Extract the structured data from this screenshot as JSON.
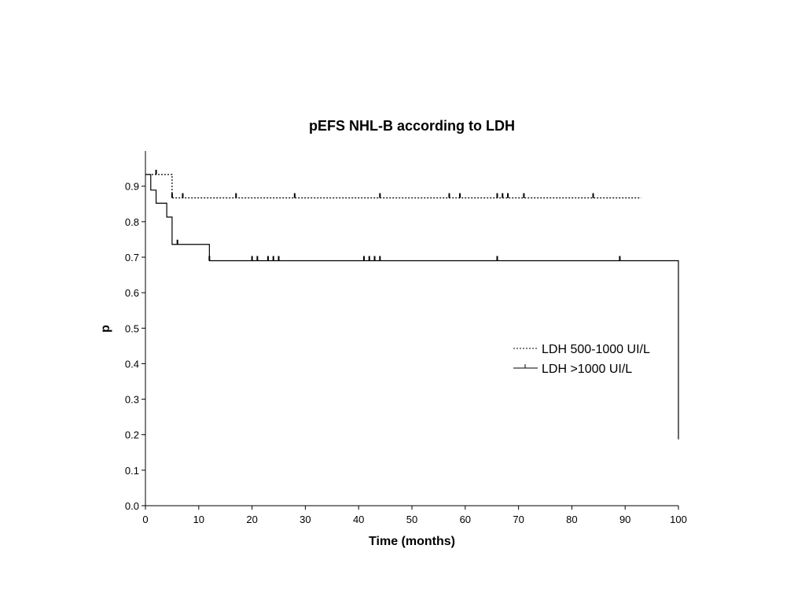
{
  "chart_data": {
    "type": "line",
    "title": "pEFS NHL-B according to LDH",
    "xlabel": "Time (months)",
    "ylabel": "p",
    "xlim": [
      0,
      100
    ],
    "ylim": [
      0,
      1.0
    ],
    "x_ticks": [
      0,
      10,
      20,
      30,
      40,
      50,
      60,
      70,
      80,
      90,
      100
    ],
    "y_ticks": [
      0.0,
      0.1,
      0.2,
      0.3,
      0.4,
      0.5,
      0.6,
      0.7,
      0.8,
      0.9
    ],
    "x_tick_labels": [
      "0",
      "10",
      "20",
      "30",
      "40",
      "50",
      "60",
      "70",
      "80",
      "90",
      "100"
    ],
    "y_tick_labels": [
      "0.0",
      "0.1",
      "0.2",
      "0.3",
      "0.4",
      "0.5",
      "0.6",
      "0.7",
      "0.8",
      "0.9"
    ],
    "grid": false,
    "legend_position": "right",
    "series": [
      {
        "name": "LDH 500-1000 UI/L",
        "style": "dotted",
        "color": "#000000",
        "steps": [
          [
            0,
            0.933
          ],
          [
            5,
            0.867
          ],
          [
            93,
            0.867
          ]
        ],
        "censored": [
          [
            2,
            0.933
          ],
          [
            5,
            0.867
          ],
          [
            7,
            0.867
          ],
          [
            17,
            0.867
          ],
          [
            28,
            0.867
          ],
          [
            44,
            0.867
          ],
          [
            57,
            0.867
          ],
          [
            59,
            0.867
          ],
          [
            66,
            0.867
          ],
          [
            67,
            0.867
          ],
          [
            68,
            0.867
          ],
          [
            71,
            0.867
          ],
          [
            84,
            0.867
          ]
        ]
      },
      {
        "name": "LDH >1000 UI/L",
        "style": "solid",
        "color": "#000000",
        "steps": [
          [
            0,
            0.933
          ],
          [
            1,
            0.889
          ],
          [
            2,
            0.852
          ],
          [
            4,
            0.813
          ],
          [
            5,
            0.736
          ],
          [
            12,
            0.69
          ],
          [
            100,
            0.69
          ],
          [
            100,
            0.187
          ]
        ],
        "censored": [
          [
            6,
            0.736
          ],
          [
            12,
            0.69
          ],
          [
            20,
            0.69
          ],
          [
            21,
            0.69
          ],
          [
            23,
            0.69
          ],
          [
            24,
            0.69
          ],
          [
            25,
            0.69
          ],
          [
            41,
            0.69
          ],
          [
            42,
            0.69
          ],
          [
            43,
            0.69
          ],
          [
            44,
            0.69
          ],
          [
            66,
            0.69
          ],
          [
            89,
            0.69
          ]
        ]
      }
    ]
  }
}
